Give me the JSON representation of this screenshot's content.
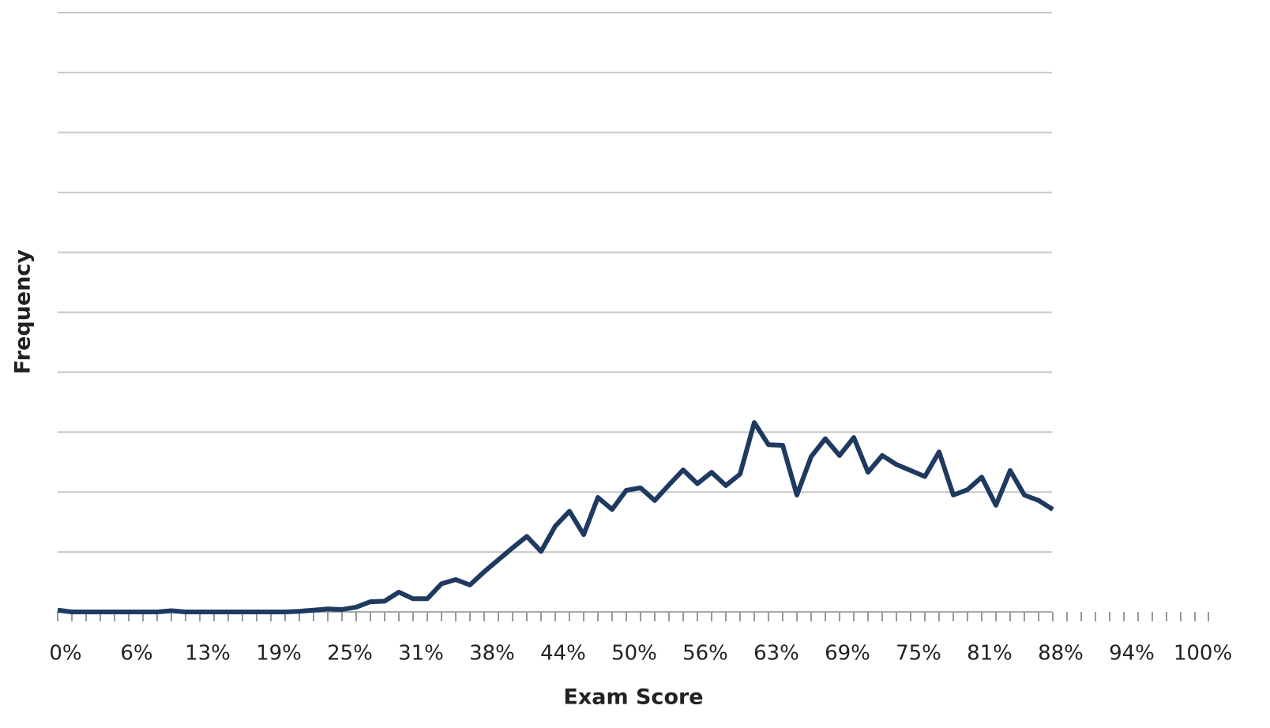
{
  "chart_data": {
    "type": "line",
    "x_label": "Exam Score",
    "y_label": "Frequency",
    "categories": [
      "0%",
      null,
      null,
      null,
      null,
      "6%",
      null,
      null,
      null,
      null,
      "13%",
      null,
      null,
      null,
      null,
      "19%",
      null,
      null,
      null,
      null,
      "25%",
      null,
      null,
      null,
      null,
      "31%",
      null,
      null,
      null,
      null,
      "38%",
      null,
      null,
      null,
      null,
      "44%",
      null,
      null,
      null,
      null,
      "50%",
      null,
      null,
      null,
      null,
      "56%",
      null,
      null,
      null,
      null,
      "63%",
      null,
      null,
      null,
      null,
      "69%",
      null,
      null,
      null,
      null,
      "75%",
      null,
      null,
      null,
      null,
      "81%",
      null,
      null,
      null,
      null,
      "88%",
      null,
      null,
      null,
      null,
      "94%",
      null,
      null,
      null,
      null,
      "100%"
    ],
    "series": [
      {
        "color": "#1f3a60",
        "values": [
          0.03,
          0,
          0,
          0,
          0,
          0,
          0,
          0,
          0.02,
          0,
          0,
          0,
          0,
          0,
          0,
          0,
          0,
          0.01,
          0.03,
          0.05,
          0.04,
          0.08,
          0.17,
          0.18,
          0.33,
          0.22,
          0.22,
          0.47,
          0.54,
          0.45,
          0.67,
          0.87,
          1.07,
          1.26,
          1.01,
          1.43,
          1.68,
          1.29,
          1.91,
          1.71,
          2.03,
          2.07,
          1.86,
          2.12,
          2.37,
          2.14,
          2.33,
          2.11,
          2.3,
          3.16,
          2.79,
          2.78,
          1.95,
          2.59,
          2.89,
          2.61,
          2.91,
          2.33,
          2.61,
          2.46,
          2.36,
          2.26,
          2.67,
          1.95,
          2.04,
          2.25,
          1.78,
          2.36,
          1.95,
          1.86,
          1.71,
          null,
          null,
          null,
          null,
          null,
          null,
          null,
          null,
          null,
          null
        ]
      }
    ],
    "ylim": [
      0,
      10
    ],
    "gridlines": [
      0,
      1,
      2,
      3,
      4,
      5,
      6,
      7,
      8,
      9,
      10
    ],
    "grid": true
  }
}
